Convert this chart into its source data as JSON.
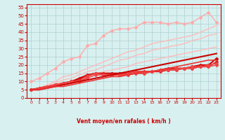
{
  "xlabel": "Vent moyen/en rafales ( km/h )",
  "background_color": "#d8f0f0",
  "grid_color": "#b0d0d0",
  "x": [
    0,
    1,
    2,
    3,
    4,
    5,
    6,
    7,
    8,
    9,
    10,
    11,
    12,
    13,
    14,
    15,
    16,
    17,
    18,
    19,
    20,
    21,
    22,
    23
  ],
  "lines": [
    {
      "color": "#ffaaaa",
      "lw": 1.0,
      "marker": "D",
      "ms": 2,
      "data": [
        10,
        12,
        15,
        18,
        22,
        24,
        25,
        32,
        33,
        38,
        41,
        42,
        42,
        43,
        46,
        46,
        46,
        45,
        46,
        45,
        46,
        49,
        52,
        46
      ]
    },
    {
      "color": "#ffbbbb",
      "lw": 1.0,
      "marker": null,
      "ms": 0,
      "data": [
        5,
        6,
        8,
        10,
        13,
        14,
        16,
        18,
        20,
        22,
        24,
        26,
        28,
        29,
        31,
        33,
        34,
        35,
        36,
        37,
        38,
        40,
        42,
        44
      ]
    },
    {
      "color": "#ffbbbb",
      "lw": 1.0,
      "marker": null,
      "ms": 0,
      "data": [
        5,
        6,
        7,
        9,
        11,
        12,
        14,
        16,
        17,
        19,
        21,
        23,
        24,
        26,
        27,
        29,
        30,
        31,
        32,
        33,
        35,
        36,
        38,
        39
      ]
    },
    {
      "color": "#ffbbbb",
      "lw": 1.0,
      "marker": null,
      "ms": 0,
      "data": [
        5,
        5,
        6,
        8,
        9,
        10,
        12,
        13,
        14,
        16,
        17,
        18,
        19,
        21,
        22,
        23,
        24,
        25,
        26,
        27,
        28,
        29,
        30,
        31
      ]
    },
    {
      "color": "#cc0000",
      "lw": 1.5,
      "marker": "D",
      "ms": 2,
      "data": [
        5,
        6,
        7,
        8,
        9,
        10,
        12,
        14,
        15,
        15,
        15,
        15,
        15,
        16,
        16,
        16,
        17,
        18,
        18,
        18,
        19,
        20,
        20,
        24
      ]
    },
    {
      "color": "#dd2222",
      "lw": 1.2,
      "marker": "D",
      "ms": 2,
      "data": [
        5,
        6,
        7,
        8,
        9,
        10,
        11,
        14,
        15,
        15,
        14,
        14,
        14,
        15,
        15,
        16,
        16,
        17,
        17,
        18,
        18,
        19,
        19,
        22
      ]
    },
    {
      "color": "#ee4444",
      "lw": 1.2,
      "marker": "D",
      "ms": 2,
      "data": [
        5,
        6,
        7,
        8,
        9,
        10,
        10,
        13,
        15,
        14,
        14,
        14,
        15,
        16,
        16,
        16,
        17,
        17,
        18,
        18,
        19,
        19,
        20,
        21
      ]
    },
    {
      "color": "#ee4444",
      "lw": 1.0,
      "marker": "D",
      "ms": 2,
      "data": [
        5,
        6,
        7,
        8,
        9,
        10,
        10,
        12,
        14,
        14,
        14,
        14,
        14,
        15,
        15,
        16,
        17,
        17,
        17,
        18,
        18,
        19,
        19,
        20
      ]
    },
    {
      "color": "#cc0000",
      "lw": 1.5,
      "marker": null,
      "ms": 0,
      "data": [
        5,
        5,
        6,
        7,
        8,
        9,
        10,
        11,
        12,
        13,
        14,
        15,
        16,
        17,
        18,
        19,
        20,
        21,
        22,
        23,
        24,
        25,
        26,
        27
      ]
    },
    {
      "color": "#ee3333",
      "lw": 1.2,
      "marker": null,
      "ms": 0,
      "data": [
        5,
        5,
        6,
        7,
        7,
        8,
        9,
        10,
        11,
        12,
        13,
        13,
        14,
        15,
        16,
        16,
        17,
        18,
        19,
        20,
        21,
        22,
        23,
        23
      ]
    }
  ],
  "ylim": [
    0,
    57
  ],
  "xlim": [
    -0.5,
    23.5
  ],
  "yticks": [
    0,
    5,
    10,
    15,
    20,
    25,
    30,
    35,
    40,
    45,
    50,
    55
  ],
  "xticks": [
    0,
    1,
    2,
    3,
    4,
    5,
    6,
    7,
    8,
    9,
    10,
    11,
    12,
    13,
    14,
    15,
    16,
    17,
    18,
    19,
    20,
    21,
    22,
    23
  ]
}
